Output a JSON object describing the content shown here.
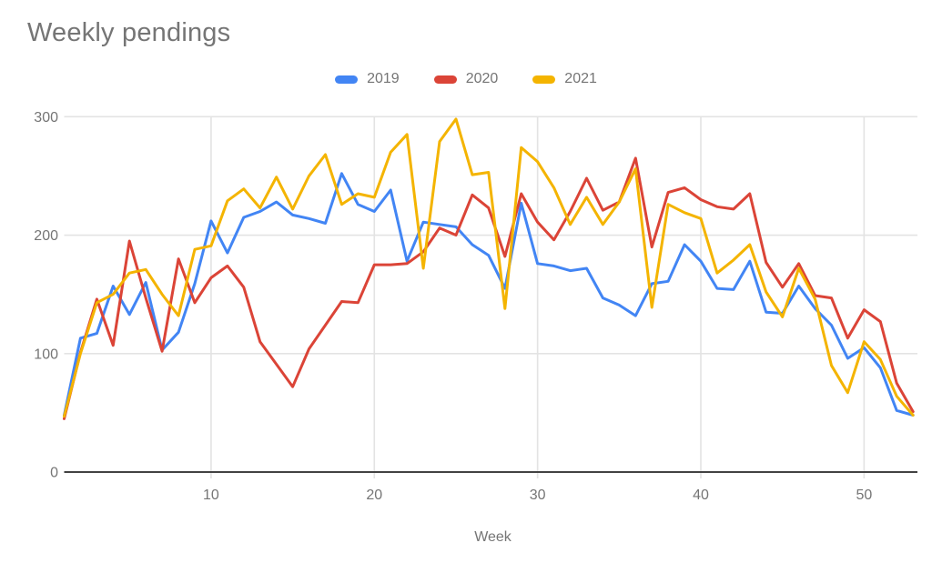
{
  "chart": {
    "title": "Weekly pendings",
    "x_axis_title": "Week"
  },
  "colors": {
    "background": "#ffffff",
    "text_muted": "#757575",
    "gridline": "#e3e3e3",
    "axis_line": "#424242",
    "series_2019": "#4285F4",
    "series_2020": "#DB4437",
    "series_2021": "#F4B400"
  },
  "chart_data": {
    "type": "line",
    "title": "Weekly pendings",
    "xlabel": "Week",
    "ylabel": "",
    "xlim": [
      1,
      53
    ],
    "ylim": [
      0,
      300
    ],
    "xticks": [
      10,
      20,
      30,
      40,
      50
    ],
    "yticks": [
      0,
      100,
      200,
      300
    ],
    "grid": true,
    "legend_position": "top",
    "x": [
      1,
      2,
      3,
      4,
      5,
      6,
      7,
      8,
      9,
      10,
      11,
      12,
      13,
      14,
      15,
      16,
      17,
      18,
      19,
      20,
      21,
      22,
      23,
      24,
      25,
      26,
      27,
      28,
      29,
      30,
      31,
      32,
      33,
      34,
      35,
      36,
      37,
      38,
      39,
      40,
      41,
      42,
      43,
      44,
      45,
      46,
      47,
      48,
      49,
      50,
      51,
      52,
      53
    ],
    "series": [
      {
        "name": "2019",
        "color": "#4285F4",
        "values": [
          48,
          113,
          117,
          157,
          133,
          160,
          103,
          118,
          159,
          212,
          185,
          215,
          220,
          228,
          217,
          214,
          210,
          252,
          226,
          220,
          238,
          178,
          211,
          209,
          207,
          192,
          183,
          155,
          227,
          176,
          174,
          170,
          172,
          147,
          141,
          132,
          159,
          161,
          192,
          178,
          155,
          154,
          178,
          135,
          134,
          157,
          138,
          124,
          96,
          105,
          88,
          52,
          48
        ]
      },
      {
        "name": "2020",
        "color": "#DB4437",
        "values": [
          45,
          101,
          146,
          107,
          195,
          147,
          102,
          180,
          143,
          164,
          174,
          156,
          110,
          91,
          72,
          104,
          124,
          144,
          143,
          175,
          175,
          176,
          186,
          206,
          200,
          234,
          223,
          182,
          235,
          211,
          196,
          220,
          248,
          221,
          228,
          265,
          190,
          236,
          240,
          230,
          224,
          222,
          235,
          177,
          156,
          176,
          149,
          147,
          113,
          137,
          127,
          75,
          51
        ]
      },
      {
        "name": "2021",
        "color": "#F4B400",
        "values": [
          47,
          100,
          143,
          150,
          168,
          171,
          150,
          132,
          188,
          191,
          229,
          239,
          223,
          249,
          222,
          250,
          268,
          226,
          235,
          232,
          270,
          285,
          172,
          279,
          298,
          251,
          253,
          138,
          274,
          262,
          240,
          209,
          232,
          209,
          228,
          256,
          139,
          226,
          219,
          214,
          168,
          179,
          192,
          152,
          131,
          172,
          146,
          90,
          67,
          110,
          95,
          64,
          48
        ]
      }
    ]
  }
}
